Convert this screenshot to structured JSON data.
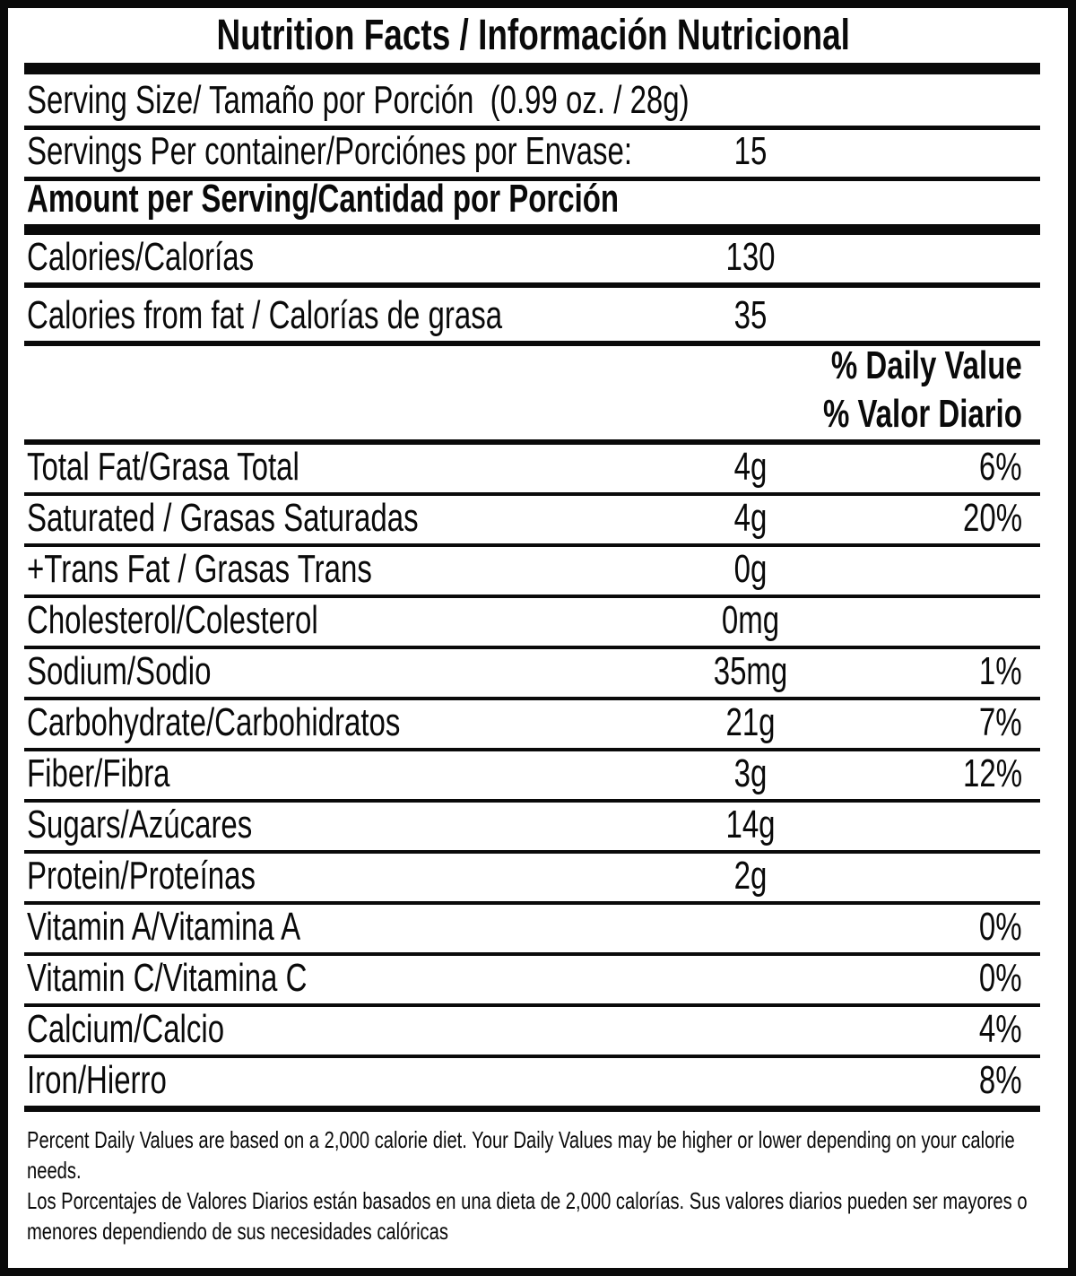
{
  "label": {
    "title": "Nutrition Facts / Información Nutricional",
    "serving_size": "Serving Size/ Tamaño por Porción  (0.99 oz. / 28g)",
    "servings_per_container": {
      "label": "Servings Per container/Porciónes por Envase:",
      "value": "15"
    },
    "amount_per_serving": "Amount per Serving/Cantidad por Porción",
    "calories": {
      "label": "Calories/Calorías",
      "value": "130"
    },
    "calories_from_fat": {
      "label": "Calories from fat / Calorías de grasa",
      "value": "35"
    },
    "daily_value_header": {
      "en": "% Daily Value",
      "es": "% Valor Diario"
    },
    "nutrients": [
      {
        "label": "Total Fat/Grasa Total",
        "amount": "4g",
        "dv": "6%"
      },
      {
        "label": "Saturated / Grasas Saturadas",
        "amount": "4g",
        "dv": "20%"
      },
      {
        "label": "+Trans Fat / Grasas Trans",
        "amount": "0g",
        "dv": ""
      },
      {
        "label": "Cholesterol/Colesterol",
        "amount": "0mg",
        "dv": ""
      },
      {
        "label": "Sodium/Sodio",
        "amount": "35mg",
        "dv": "1%"
      },
      {
        "label": "Carbohydrate/Carbohidratos",
        "amount": "21g",
        "dv": "7%"
      },
      {
        "label": "Fiber/Fibra",
        "amount": "3g",
        "dv": "12%"
      },
      {
        "label": "Sugars/Azúcares",
        "amount": "14g",
        "dv": ""
      },
      {
        "label": "Protein/Proteínas",
        "amount": "2g",
        "dv": ""
      },
      {
        "label": "Vitamin A/Vitamina A",
        "amount": "",
        "dv": "0%"
      },
      {
        "label": "Vitamin C/Vitamina C",
        "amount": "",
        "dv": "0%"
      },
      {
        "label": "Calcium/Calcio",
        "amount": "",
        "dv": "4%"
      },
      {
        "label": "Iron/Hierro",
        "amount": "",
        "dv": "8%"
      }
    ],
    "footnotes": [
      "Percent Daily Values are based on a 2,000 calorie diet. Your Daily Values may be higher or lower depending on your calorie needs.",
      "Los Porcentajes de Valores Diarios están basados en una dieta de 2,000 calorías. Sus valores diarios pueden ser mayores o menores dependiendo de sus necesidades calóricas"
    ],
    "colors": {
      "ink": "#0a0a0a",
      "background": "#ffffff"
    }
  }
}
